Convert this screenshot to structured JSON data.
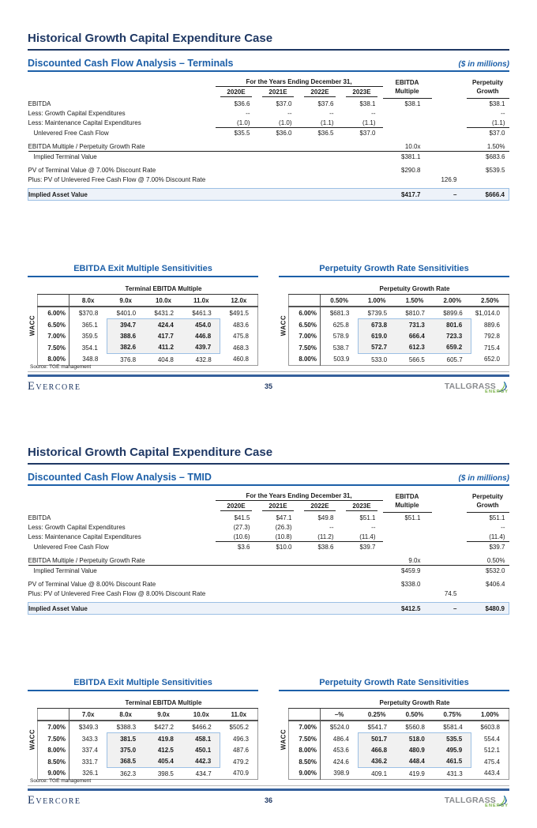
{
  "colors": {
    "navy": "#1f3864",
    "blue": "#1c5fa8",
    "highlight_border": "#9cc0e4",
    "highlight_fill": "#f1f1f1",
    "total_fill": "#edf2f9",
    "footer_rule": "#35609c",
    "logo_green": "#76b043",
    "logo_blue": "#1f6fb5",
    "logo_gray": "#8a8c8f"
  },
  "footer": {
    "brand_left": "Evercore",
    "brand_right_name": "TALLGRASS",
    "brand_right_sub": "ENERGY"
  },
  "pages": [
    {
      "title": "Historical Growth Capital Expenditure Case",
      "section_title": "Discounted Cash Flow Analysis – Terminals",
      "units_note": "($ in millions)",
      "dcf": {
        "group_header": "For the Years Ending December 31,",
        "years": [
          "2020E",
          "2021E",
          "2022E",
          "2023E"
        ],
        "multiple_header": {
          "line1": "EBITDA",
          "line2": "Multiple"
        },
        "growth_header": {
          "line1": "Perpetuity",
          "line2": "Growth"
        },
        "rows": [
          {
            "label": "EBITDA",
            "y": [
              "$36.6",
              "$37.0",
              "$37.6",
              "$38.1"
            ],
            "multiple": "$38.1",
            "mid": "",
            "growth": "$38.1"
          },
          {
            "label": "Less: Growth Capital Expenditures",
            "y": [
              "--",
              "--",
              "--",
              "--"
            ],
            "multiple": "",
            "mid": "",
            "growth": "--"
          },
          {
            "label": "Less: Maintenance Capital Expenditures",
            "y": [
              "(1.0)",
              "(1.0)",
              "(1.1)",
              "(1.1)"
            ],
            "multiple": "",
            "mid": "",
            "growth": "(1.1)"
          },
          {
            "label": "Unlevered Free Cash Flow",
            "y": [
              "$35.5",
              "$36.0",
              "$36.5",
              "$37.0"
            ],
            "multiple": "",
            "mid": "",
            "growth": "$37.0"
          },
          {
            "label": "EBITDA Multiple / Perpetuity Growth Rate",
            "y": [
              "",
              "",
              "",
              ""
            ],
            "multiple": "10.0x",
            "mid": "",
            "growth": "1.50%"
          },
          {
            "label": "Implied Terminal Value",
            "y": [
              "",
              "",
              "",
              ""
            ],
            "multiple": "$381.1",
            "mid": "",
            "growth": "$683.6"
          },
          {
            "label": "PV of Terminal Value @ 7.00% Discount Rate",
            "y": [
              "",
              "",
              "",
              ""
            ],
            "multiple": "$290.8",
            "mid": "",
            "growth": "$539.5"
          },
          {
            "label": "Plus: PV of Unlevered Free Cash Flow @ 7.00% Discount Rate",
            "y": [
              "",
              "",
              "",
              ""
            ],
            "multiple": "",
            "mid": "126.9",
            "growth": ""
          },
          {
            "label": "Implied Asset Value",
            "y": [
              "",
              "",
              "",
              ""
            ],
            "multiple": "$417.7",
            "mid": "–",
            "growth": "$666.4"
          }
        ]
      },
      "sensitivities": [
        {
          "title": "EBITDA Exit Multiple Sensitivities",
          "axis_label": "WACC",
          "col_group": "Terminal EBITDA Multiple",
          "columns": [
            "8.0x",
            "9.0x",
            "10.0x",
            "11.0x",
            "12.0x"
          ],
          "rows": [
            {
              "wacc": "6.00%",
              "values": [
                "$370.8",
                "$401.0",
                "$431.2",
                "$461.3",
                "$491.5"
              ]
            },
            {
              "wacc": "6.50%",
              "values": [
                "365.1",
                "394.7",
                "424.4",
                "454.0",
                "483.6"
              ]
            },
            {
              "wacc": "7.00%",
              "values": [
                "359.5",
                "388.6",
                "417.7",
                "446.8",
                "475.8"
              ]
            },
            {
              "wacc": "7.50%",
              "values": [
                "354.1",
                "382.6",
                "411.2",
                "439.7",
                "468.3"
              ]
            },
            {
              "wacc": "8.00%",
              "values": [
                "348.8",
                "376.8",
                "404.8",
                "432.8",
                "460.8"
              ]
            }
          ]
        },
        {
          "title": "Perpetuity Growth Rate Sensitivities",
          "axis_label": "WACC",
          "col_group": "Perpetuity Growth Rate",
          "columns": [
            "0.50%",
            "1.00%",
            "1.50%",
            "2.00%",
            "2.50%"
          ],
          "rows": [
            {
              "wacc": "6.00%",
              "values": [
                "$681.3",
                "$739.5",
                "$810.7",
                "$899.6",
                "$1,014.0"
              ]
            },
            {
              "wacc": "6.50%",
              "values": [
                "625.8",
                "673.8",
                "731.3",
                "801.6",
                "889.6"
              ]
            },
            {
              "wacc": "7.00%",
              "values": [
                "578.9",
                "619.0",
                "666.4",
                "723.3",
                "792.8"
              ]
            },
            {
              "wacc": "7.50%",
              "values": [
                "538.7",
                "572.7",
                "612.3",
                "659.2",
                "715.4"
              ]
            },
            {
              "wacc": "8.00%",
              "values": [
                "503.9",
                "533.0",
                "566.5",
                "605.7",
                "652.0"
              ]
            }
          ]
        }
      ],
      "source_note": "Source: TGE management",
      "page_number": "35"
    },
    {
      "title": "Historical Growth Capital Expenditure Case",
      "section_title": "Discounted Cash Flow Analysis – TMID",
      "units_note": "($ in millions)",
      "dcf": {
        "group_header": "For the Years Ending December 31,",
        "years": [
          "2020E",
          "2021E",
          "2022E",
          "2023E"
        ],
        "multiple_header": {
          "line1": "EBITDA",
          "line2": "Multiple"
        },
        "growth_header": {
          "line1": "Perpetuity",
          "line2": "Growth"
        },
        "rows": [
          {
            "label": "EBITDA",
            "y": [
              "$41.5",
              "$47.1",
              "$49.8",
              "$51.1"
            ],
            "multiple": "$51.1",
            "mid": "",
            "growth": "$51.1"
          },
          {
            "label": "Less: Growth Capital Expenditures",
            "y": [
              "(27.3)",
              "(26.3)",
              "--",
              "--"
            ],
            "multiple": "",
            "mid": "",
            "growth": "--"
          },
          {
            "label": "Less: Maintenance Capital Expenditures",
            "y": [
              "(10.6)",
              "(10.8)",
              "(11.2)",
              "(11.4)"
            ],
            "multiple": "",
            "mid": "",
            "growth": "(11.4)"
          },
          {
            "label": "Unlevered Free Cash Flow",
            "y": [
              "$3.6",
              "$10.0",
              "$38.6",
              "$39.7"
            ],
            "multiple": "",
            "mid": "",
            "growth": "$39.7"
          },
          {
            "label": "EBITDA Multiple / Perpetuity Growth Rate",
            "y": [
              "",
              "",
              "",
              ""
            ],
            "multiple": "9.0x",
            "mid": "",
            "growth": "0.50%"
          },
          {
            "label": "Implied Terminal Value",
            "y": [
              "",
              "",
              "",
              ""
            ],
            "multiple": "$459.9",
            "mid": "",
            "growth": "$532.0"
          },
          {
            "label": "PV of Terminal Value @ 8.00% Discount Rate",
            "y": [
              "",
              "",
              "",
              ""
            ],
            "multiple": "$338.0",
            "mid": "",
            "growth": "$406.4"
          },
          {
            "label": "Plus: PV of Unlevered Free Cash Flow @ 8.00% Discount Rate",
            "y": [
              "",
              "",
              "",
              ""
            ],
            "multiple": "",
            "mid": "74.5",
            "growth": ""
          },
          {
            "label": "Implied Asset Value",
            "y": [
              "",
              "",
              "",
              ""
            ],
            "multiple": "$412.5",
            "mid": "–",
            "growth": "$480.9"
          }
        ]
      },
      "sensitivities": [
        {
          "title": "EBITDA Exit Multiple Sensitivities",
          "axis_label": "WACC",
          "col_group": "Terminal EBITDA Multiple",
          "columns": [
            "7.0x",
            "8.0x",
            "9.0x",
            "10.0x",
            "11.0x"
          ],
          "rows": [
            {
              "wacc": "7.00%",
              "values": [
                "$349.3",
                "$388.3",
                "$427.2",
                "$466.2",
                "$505.2"
              ]
            },
            {
              "wacc": "7.50%",
              "values": [
                "343.3",
                "381.5",
                "419.8",
                "458.1",
                "496.3"
              ]
            },
            {
              "wacc": "8.00%",
              "values": [
                "337.4",
                "375.0",
                "412.5",
                "450.1",
                "487.6"
              ]
            },
            {
              "wacc": "8.50%",
              "values": [
                "331.7",
                "368.5",
                "405.4",
                "442.3",
                "479.2"
              ]
            },
            {
              "wacc": "9.00%",
              "values": [
                "326.1",
                "362.3",
                "398.5",
                "434.7",
                "470.9"
              ]
            }
          ]
        },
        {
          "title": "Perpetuity Growth Rate Sensitivities",
          "axis_label": "WACC",
          "col_group": "Perpetuity Growth Rate",
          "columns": [
            "–%",
            "0.25%",
            "0.50%",
            "0.75%",
            "1.00%"
          ],
          "rows": [
            {
              "wacc": "7.00%",
              "values": [
                "$524.0",
                "$541.7",
                "$560.8",
                "$581.4",
                "$603.8"
              ]
            },
            {
              "wacc": "7.50%",
              "values": [
                "486.4",
                "501.7",
                "518.0",
                "535.5",
                "554.4"
              ]
            },
            {
              "wacc": "8.00%",
              "values": [
                "453.6",
                "466.8",
                "480.9",
                "495.9",
                "512.1"
              ]
            },
            {
              "wacc": "8.50%",
              "values": [
                "424.6",
                "436.2",
                "448.4",
                "461.5",
                "475.4"
              ]
            },
            {
              "wacc": "9.00%",
              "values": [
                "398.9",
                "409.1",
                "419.9",
                "431.3",
                "443.4"
              ]
            }
          ]
        }
      ],
      "source_note": "Source: TGE management",
      "page_number": "36"
    }
  ]
}
